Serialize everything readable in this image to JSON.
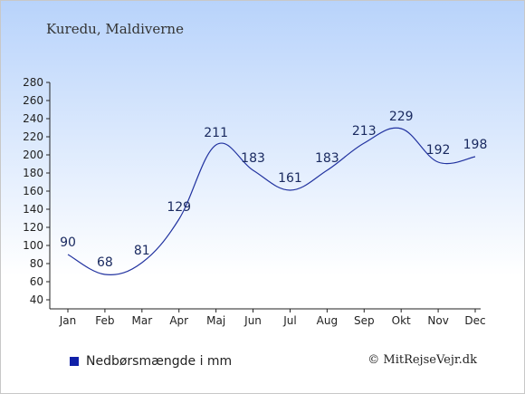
{
  "title": "Kuredu, Maldiverne",
  "legend_label": "Nedbørsmængde i mm",
  "credit": "© MitRejseVejr.dk",
  "colors": {
    "line": "#2233a0",
    "legend_swatch": "#1020a8"
  },
  "chart_data": {
    "type": "line",
    "title": "Kuredu, Maldiverne",
    "xlabel": "",
    "ylabel": "",
    "categories": [
      "Jan",
      "Feb",
      "Mar",
      "Apr",
      "Maj",
      "Jun",
      "Jul",
      "Aug",
      "Sep",
      "Okt",
      "Nov",
      "Dec"
    ],
    "series": [
      {
        "name": "Nedbørsmængde i mm",
        "values": [
          90,
          68,
          81,
          129,
          211,
          183,
          161,
          183,
          213,
          229,
          192,
          198
        ]
      }
    ],
    "ylim": [
      40,
      280
    ],
    "yticks": [
      40,
      60,
      80,
      100,
      120,
      140,
      160,
      180,
      200,
      220,
      240,
      260,
      280
    ],
    "grid": false,
    "legend": "bottom-left"
  }
}
